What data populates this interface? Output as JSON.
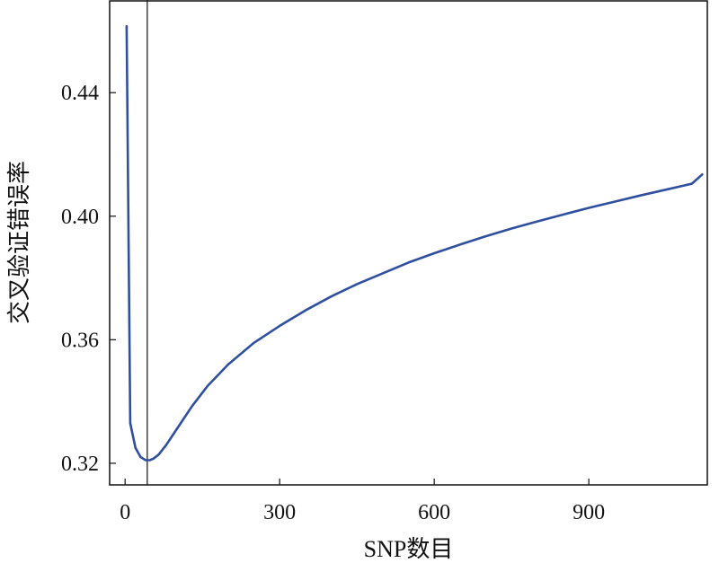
{
  "chart_data": {
    "type": "line",
    "xlabel": "SNP数目",
    "ylabel": "交叉验证错误率",
    "xlim": [
      -30,
      1130
    ],
    "ylim": [
      0.313,
      0.47
    ],
    "x_ticks": [
      0,
      300,
      600,
      900
    ],
    "x_tick_labels": [
      "0",
      "300",
      "600",
      "900"
    ],
    "y_ticks": [
      0.32,
      0.36,
      0.4,
      0.44
    ],
    "y_tick_labels": [
      "0.32",
      "0.36",
      "0.40",
      "0.44"
    ],
    "grid": false,
    "vertical_reference_line_x": 43,
    "series": [
      {
        "color": "#2f4f9f",
        "x": [
          3,
          10,
          20,
          30,
          40,
          48,
          55,
          65,
          80,
          100,
          130,
          160,
          200,
          250,
          300,
          350,
          400,
          450,
          500,
          550,
          600,
          650,
          700,
          750,
          800,
          850,
          900,
          950,
          1000,
          1050,
          1100,
          1120
        ],
        "y": [
          0.4615,
          0.333,
          0.325,
          0.322,
          0.321,
          0.321,
          0.3215,
          0.3228,
          0.326,
          0.331,
          0.3385,
          0.345,
          0.352,
          0.359,
          0.3645,
          0.3695,
          0.374,
          0.378,
          0.3815,
          0.385,
          0.388,
          0.3908,
          0.3935,
          0.396,
          0.3983,
          0.4005,
          0.4027,
          0.4047,
          0.4067,
          0.4086,
          0.4105,
          0.4135
        ]
      }
    ]
  }
}
